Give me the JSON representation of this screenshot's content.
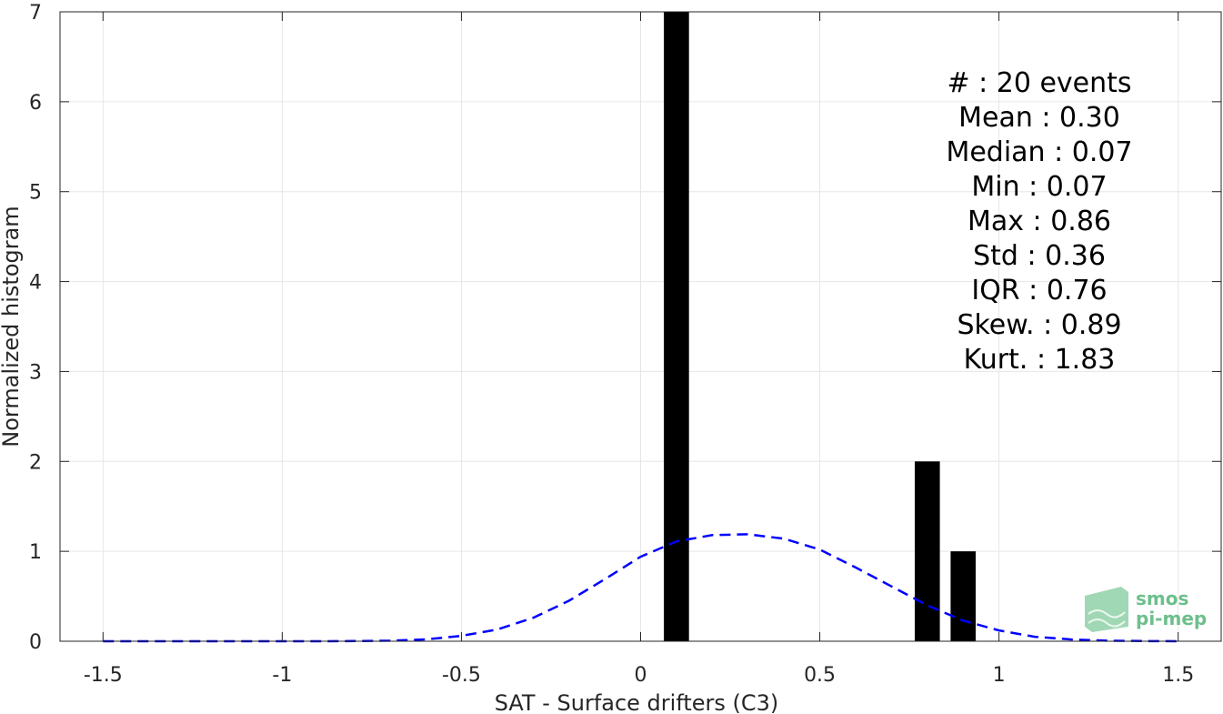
{
  "chart_data": {
    "type": "bar",
    "title": "",
    "xlabel": "SAT - Surface drifters (C3)",
    "ylabel": "Normalized histogram",
    "xlim": [
      -1.62,
      1.62
    ],
    "ylim": [
      0,
      7
    ],
    "grid": true,
    "x_ticks": [
      -1.5,
      -1,
      -0.5,
      0,
      0.5,
      1,
      1.5
    ],
    "x_tick_labels": [
      "-1.5",
      "-1",
      "-0.5",
      "0",
      "0.5",
      "1",
      "1.5"
    ],
    "y_ticks": [
      0,
      1,
      2,
      3,
      4,
      5,
      6,
      7
    ],
    "y_tick_labels": [
      "0",
      "1",
      "2",
      "3",
      "4",
      "5",
      "6",
      "7"
    ],
    "bar_color": "#000000",
    "bar_width": 0.07,
    "bars": [
      {
        "x": 0.1,
        "value": 7
      },
      {
        "x": 0.8,
        "value": 2
      },
      {
        "x": 0.9,
        "value": 1
      }
    ],
    "fit_curve": {
      "style": "dashed",
      "color": "#0000ff",
      "x": [
        -1.5,
        -1.4,
        -1.3,
        -1.2,
        -1.1,
        -1.0,
        -0.9,
        -0.8,
        -0.7,
        -0.6,
        -0.5,
        -0.4,
        -0.3,
        -0.2,
        -0.1,
        0.0,
        0.1,
        0.2,
        0.3,
        0.4,
        0.5,
        0.6,
        0.7,
        0.8,
        0.9,
        1.0,
        1.1,
        1.2,
        1.3,
        1.4,
        1.5
      ],
      "y": [
        0.0,
        0.0,
        0.0,
        0.0,
        0.0,
        0.0,
        0.0,
        0.002,
        0.006,
        0.02,
        0.06,
        0.13,
        0.26,
        0.45,
        0.69,
        0.94,
        1.11,
        1.18,
        1.19,
        1.14,
        1.02,
        0.82,
        0.61,
        0.4,
        0.23,
        0.12,
        0.05,
        0.02,
        0.006,
        0.002,
        0.0
      ]
    },
    "stats": [
      "#  : 20 events",
      "Mean : 0.30",
      "Median : 0.07",
      "Min : 0.07",
      "Max : 0.86",
      "Std : 0.36",
      "IQR : 0.76",
      "Skew. : 0.89",
      "Kurt. : 1.83"
    ]
  },
  "logo": {
    "line1": "smos",
    "line2": "pi-mep",
    "color": "#6dbf8c"
  }
}
